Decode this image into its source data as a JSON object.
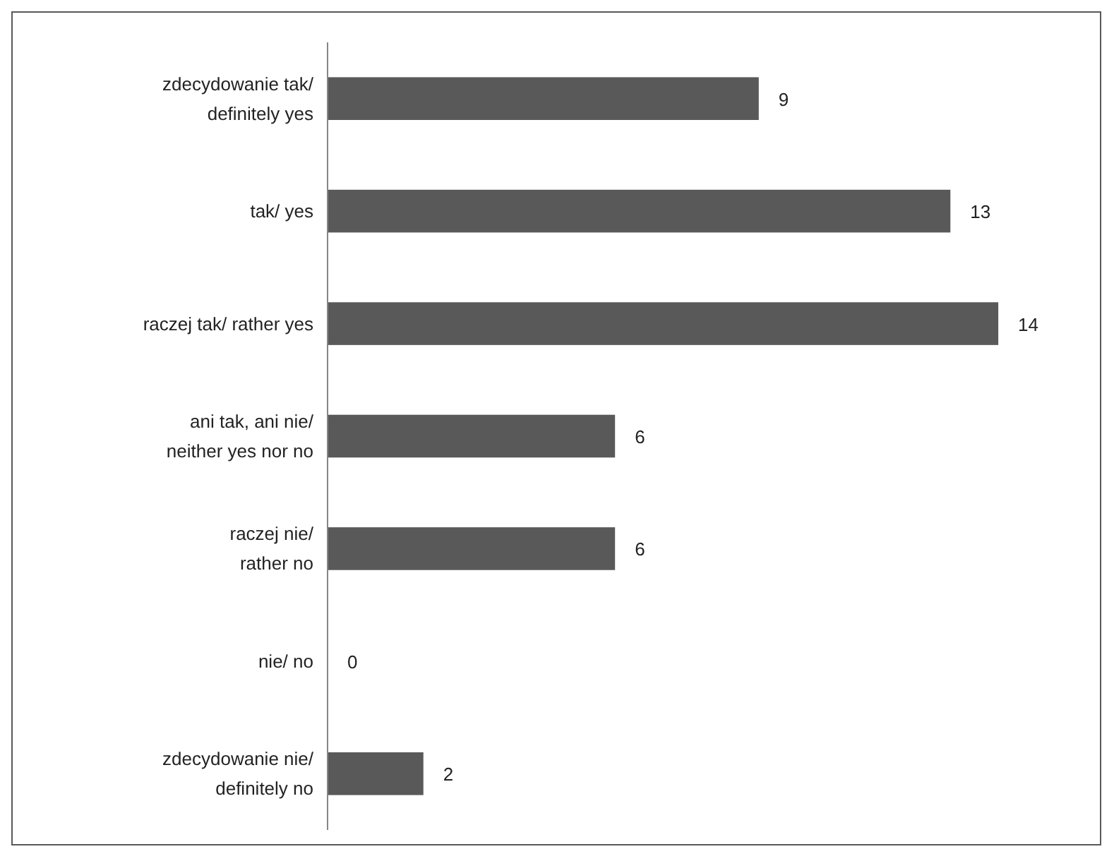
{
  "chart_data": {
    "type": "bar",
    "orientation": "horizontal",
    "categories": [
      "zdecydowanie tak/\ndefinitely yes",
      "tak/ yes",
      "raczej tak/ rather yes",
      "ani tak, ani nie/\nneither yes nor no",
      "raczej nie/\nrather no",
      "nie/ no",
      "zdecydowanie nie/\ndefinitely no"
    ],
    "values": [
      9,
      13,
      14,
      6,
      6,
      0,
      2
    ],
    "color": "#595959",
    "data_labels": true
  }
}
